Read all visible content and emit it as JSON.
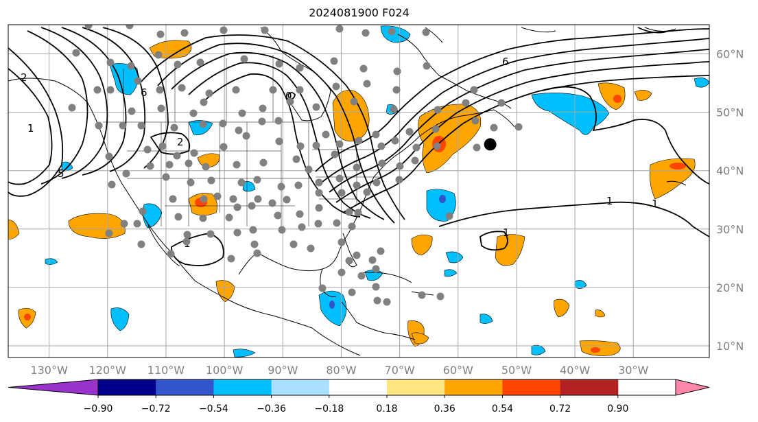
{
  "title": "2024081900 F024",
  "map": {
    "extent_lon": [
      -137,
      -17
    ],
    "extent_lat": [
      8,
      65
    ],
    "lon_ticks": [
      {
        "value": -130,
        "label": "130°W"
      },
      {
        "value": -120,
        "label": "120°W"
      },
      {
        "value": -110,
        "label": "110°W"
      },
      {
        "value": -100,
        "label": "100°W"
      },
      {
        "value": -90,
        "label": "90°W"
      },
      {
        "value": -80,
        "label": "80°W"
      },
      {
        "value": -70,
        "label": "70°W"
      },
      {
        "value": -60,
        "label": "60°W"
      },
      {
        "value": -50,
        "label": "50°W"
      },
      {
        "value": -40,
        "label": "40°W"
      },
      {
        "value": -30,
        "label": "30°W"
      }
    ],
    "lat_ticks": [
      {
        "value": 60,
        "label": "60°N"
      },
      {
        "value": 50,
        "label": "50°N"
      },
      {
        "value": 40,
        "label": "40°N"
      },
      {
        "value": 30,
        "label": "30°N"
      },
      {
        "value": 20,
        "label": "20°N"
      },
      {
        "value": 10,
        "label": "10°N"
      }
    ],
    "gridlines": true,
    "marker": {
      "lon": -54.5,
      "lat": 44.5,
      "color": "#000000"
    },
    "station_color": "#808080",
    "contour_labels": [
      "1",
      "1",
      "1",
      "1",
      "1",
      "2",
      "2",
      "5",
      "6",
      "6",
      "0"
    ]
  },
  "colorbar": {
    "ticks": [
      "−0.90",
      "−0.72",
      "−0.54",
      "−0.36",
      "−0.18",
      "0.18",
      "0.36",
      "0.54",
      "0.72",
      "0.90"
    ],
    "colors": [
      "#9933cc",
      "#00008b",
      "#3355cc",
      "#00bfff",
      "#aadfff",
      "#ffffff",
      "#ffe680",
      "#ffa500",
      "#ff4500",
      "#b22222",
      "#ff88aa"
    ]
  }
}
